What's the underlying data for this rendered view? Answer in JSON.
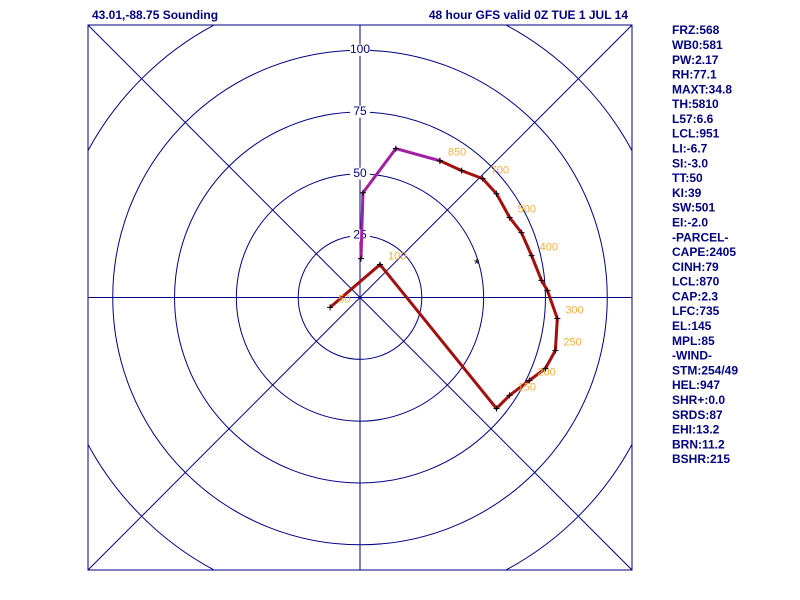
{
  "chart_data": {
    "type": "hodograph",
    "title": "43.01,-88.75 Sounding",
    "subtitle": "48 hour GFS valid 0Z TUE  1 JUL 14",
    "xlim": [
      -110,
      110
    ],
    "ylim": [
      -110,
      110
    ],
    "yticks": [
      25,
      50,
      75,
      100
    ],
    "rings": [
      25,
      50,
      75,
      100,
      125
    ],
    "series": [
      {
        "color": "#a01010",
        "x": [
          -12.1,
          8.1,
          55.2,
          60.5,
          68.5,
          75.0,
          79.0,
          79.8,
          75.8,
          73.4,
          69.4,
          65.3,
          60.5,
          55.2,
          49.6,
          41.1,
          32.3
        ],
        "values": [
          -4.0,
          13.3,
          -44.8,
          -39.5,
          -33.5,
          -28.6,
          -21.4,
          -8.5,
          2.8,
          6.9,
          16.9,
          26.2,
          32.3,
          41.9,
          48.0,
          51.2,
          55.2
        ],
        "point_labels": [
          "50",
          "100",
          null,
          "150",
          "200",
          null,
          "250",
          "300",
          null,
          null,
          "400",
          null,
          "500",
          null,
          "700",
          null,
          "850"
        ]
      },
      {
        "color": "#a020a0",
        "x": [
          32.3,
          14.5,
          1.2,
          0.4
        ],
        "values": [
          55.2,
          60.1,
          42.3,
          15.7
        ],
        "point_labels": [
          null,
          null,
          null,
          null
        ]
      }
    ],
    "storm_motion": {
      "x": 47.2,
      "y": 14.1,
      "symbol": "*"
    }
  },
  "indices": [
    "FRZ:568",
    "WB0:581",
    "PW:2.17",
    "RH:77.1",
    "MAXT:34.8",
    "TH:5810",
    "L57:6.6",
    "LCL:951",
    "LI:-6.7",
    "SI:-3.0",
    "TT:50",
    "KI:39",
    "SW:501",
    "EI:-2.0",
    "-PARCEL-",
    "CAPE:2405",
    "CINH:79",
    "LCL:870",
    "CAP:2.3",
    "LFC:735",
    "EL:145",
    "MPL:85",
    "-WIND-",
    "STM:254/49",
    "HEL:947",
    "SHR+:0.0",
    "SRDS:87",
    "EHI:13.2",
    "BRN:11.2",
    "BSHR:215"
  ]
}
